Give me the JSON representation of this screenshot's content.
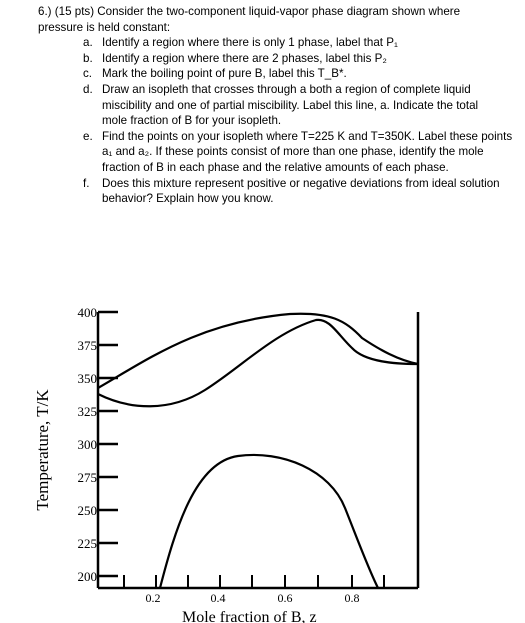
{
  "question": {
    "number": "6.)",
    "stem_line1": "(15 pts) Consider the two-component liquid-vapor phase diagram shown where",
    "stem_line2": "pressure is held constant:",
    "items": [
      {
        "letter": "a.",
        "lines": [
          "Identify a region where there is only 1 phase, label that P₁"
        ]
      },
      {
        "letter": "b.",
        "lines": [
          "Identify a region where there are 2 phases, label this P₂"
        ]
      },
      {
        "letter": "c.",
        "lines": [
          "Mark the boiling point of pure B, label this T_B*."
        ]
      },
      {
        "letter": "d.",
        "lines": [
          "Draw an isopleth that crosses through a both a region of complete liquid",
          "miscibility and one of partial miscibility.  Label this line, a.  Indicate the total",
          "mole fraction of B for your isopleth."
        ]
      },
      {
        "letter": "e.",
        "lines": [
          "Find the points on your isopleth where T=225 K and T=350K.  Label these points",
          "a₁ and a₂. If these points consist of more than one phase, identify the mole",
          "fraction of B in each phase and the relative amounts of each phase."
        ]
      },
      {
        "letter": "f.",
        "lines": [
          "Does this mixture represent positive or negative deviations from ideal solution",
          "behavior? Explain how you know."
        ]
      }
    ]
  },
  "figure": {
    "y_axis_label": "Temperature, T/K",
    "x_axis_label": "Mole fraction of B, z",
    "y_ticks": [
      "400",
      "375",
      "350",
      "325",
      "300",
      "275",
      "250",
      "225",
      "200"
    ],
    "x_ticks": [
      "0.2",
      "0.4",
      "0.6",
      "0.8"
    ]
  }
}
